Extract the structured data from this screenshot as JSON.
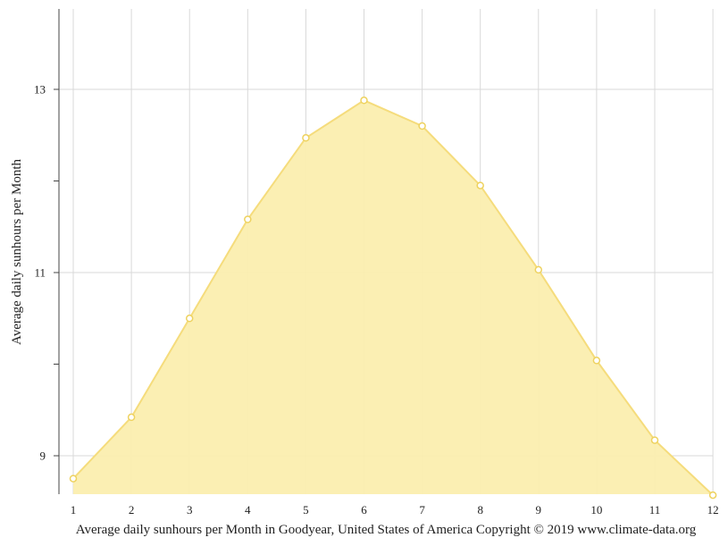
{
  "chart_data": {
    "type": "area",
    "title": "",
    "xlabel": "Average daily sunhours per Month in Goodyear, United States of America Copyright © 2019 www.climate-data.org",
    "ylabel": "Average daily sunhours per Month",
    "x": [
      1,
      2,
      3,
      4,
      5,
      6,
      7,
      8,
      9,
      10,
      11,
      12
    ],
    "x_tick_labels": [
      "1",
      "2",
      "3",
      "4",
      "5",
      "6",
      "7",
      "8",
      "9",
      "10",
      "11",
      "12"
    ],
    "values": [
      8.75,
      9.42,
      10.5,
      11.58,
      12.47,
      12.88,
      12.6,
      11.95,
      11.03,
      10.04,
      9.17,
      8.57
    ],
    "y_tick_labels": [
      "9",
      "11",
      "13"
    ],
    "y_ticks": [
      9,
      11,
      13
    ],
    "y_minor_ticks": [
      10,
      12
    ],
    "xlim": [
      0.75,
      12
    ],
    "ylim": [
      8.57,
      13.88
    ],
    "grid": true,
    "colors": {
      "fill": "#fbeeaf",
      "line": "#f5dc7c",
      "marker_stroke": "#eed25f",
      "grid": "#d9d9d9",
      "axis": "#444444"
    }
  }
}
